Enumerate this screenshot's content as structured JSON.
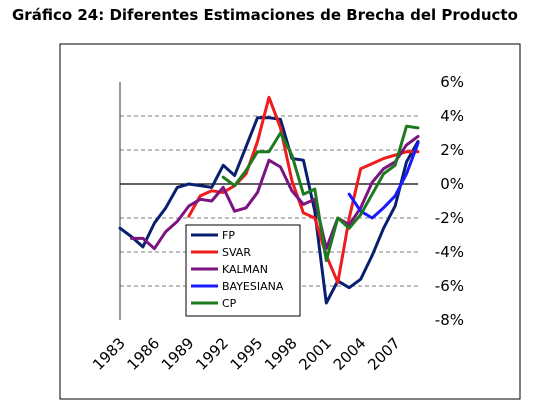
{
  "title": "Gráfico 24: Diferentes Estimaciones de Brecha del Producto",
  "chart_data": {
    "type": "line",
    "title": "Gráfico 24: Diferentes Estimaciones de Brecha del Producto",
    "xlabel": "",
    "ylabel": "",
    "xlim": [
      1983,
      2009
    ],
    "ylim": [
      -8,
      6
    ],
    "x_ticks": [
      "1983",
      "1986",
      "1989",
      "1992",
      "1995",
      "1998",
      "2001",
      "2004",
      "2007"
    ],
    "y_ticks": [
      {
        "value": 6,
        "label": "6%"
      },
      {
        "value": 4,
        "label": "4%"
      },
      {
        "value": 2,
        "label": "2%"
      },
      {
        "value": 0,
        "label": "0%"
      },
      {
        "value": -2,
        "label": "-2%"
      },
      {
        "value": -4,
        "label": "-4%"
      },
      {
        "value": -6,
        "label": "-6%"
      },
      {
        "value": -8,
        "label": "-8%"
      }
    ],
    "grid": "horizontal dashed at 4, 2, -2, -4, -6; solid at 0",
    "legend_position": "lower-left inside plot",
    "series": [
      {
        "name": "FP",
        "color": "#0a1f6e",
        "x": [
          1983,
          1984,
          1985,
          1986,
          1987,
          1988,
          1989,
          1990,
          1991,
          1992,
          1993,
          1994,
          1995,
          1996,
          1997,
          1998,
          1999,
          2000,
          2001,
          2002,
          2003,
          2004,
          2005,
          2006,
          2007,
          2008,
          2009
        ],
        "y": [
          -2.6,
          -3.1,
          -3.7,
          -2.3,
          -1.4,
          -0.2,
          0,
          -0.1,
          -0.2,
          1.1,
          0.5,
          2.2,
          3.9,
          3.9,
          3.8,
          1.5,
          1.4,
          -1.6,
          -7.0,
          -5.7,
          -6.1,
          -5.6,
          -4.2,
          -2.6,
          -1.3,
          1.3,
          2.5
        ]
      },
      {
        "name": "SVAR",
        "color": "#ee1c1c",
        "x": [
          1989,
          1990,
          1991,
          1992,
          1993,
          1994,
          1995,
          1996,
          1997,
          1998,
          1999,
          2000,
          2001,
          2002,
          2003,
          2004,
          2005,
          2006,
          2007,
          2008,
          2009
        ],
        "y": [
          -1.9,
          -0.7,
          -0.4,
          -0.5,
          -0.1,
          0.6,
          2.5,
          5.1,
          3.3,
          0.2,
          -1.7,
          -2.0,
          -4.2,
          -5.8,
          -2.0,
          0.9,
          1.2,
          1.5,
          1.7,
          1.9,
          1.9
        ]
      },
      {
        "name": "KALMAN",
        "color": "#7b1481",
        "x": [
          1984,
          1985,
          1986,
          1987,
          1988,
          1989,
          1990,
          1991,
          1992,
          1993,
          1994,
          1995,
          1996,
          1997,
          1998,
          1999,
          2000,
          2001,
          2002,
          2003,
          2004,
          2005,
          2006,
          2007,
          2008,
          2009
        ],
        "y": [
          -3.2,
          -3.2,
          -3.8,
          -2.8,
          -2.2,
          -1.3,
          -0.9,
          -1.0,
          -0.2,
          -1.6,
          -1.4,
          -0.5,
          1.4,
          1.0,
          -0.4,
          -1.2,
          -0.9,
          -3.8,
          -2.0,
          -2.4,
          -1.4,
          0.1,
          0.9,
          1.3,
          2.3,
          2.8
        ]
      },
      {
        "name": "BAYESIANA",
        "color": "#1a1aff",
        "x": [
          2003,
          2004,
          2005,
          2006,
          2007,
          2008,
          2009
        ],
        "y": [
          -0.6,
          -1.6,
          -2.0,
          -1.4,
          -0.7,
          0.6,
          2.4
        ]
      },
      {
        "name": "CP",
        "color": "#1e7a1e",
        "x": [
          1992,
          1993,
          1994,
          1995,
          1996,
          1997,
          1998,
          1999,
          2000,
          2001,
          2002,
          2003,
          2004,
          2005,
          2006,
          2007,
          2008,
          2009
        ],
        "y": [
          0.4,
          -0.1,
          0.8,
          1.9,
          1.9,
          3.0,
          1.7,
          -0.6,
          -0.3,
          -4.5,
          -2.0,
          -2.6,
          -1.8,
          -0.6,
          0.6,
          1.1,
          3.4,
          3.3
        ]
      }
    ]
  }
}
